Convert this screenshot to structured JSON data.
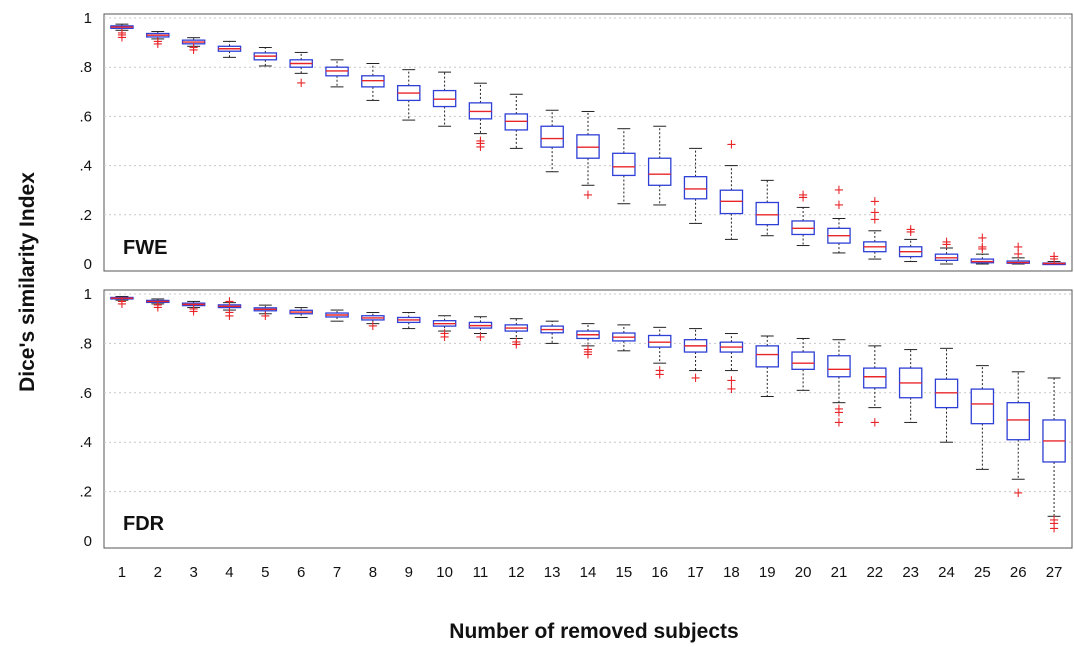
{
  "figure": {
    "ylabel": "Dice's similarity Index",
    "xlabel": "Number of removed subjects"
  },
  "chart_data": [
    {
      "type": "box",
      "panel_label": "FWE",
      "xlabel": "Number of removed subjects",
      "ylabel": "Dice's similarity Index",
      "ylim": [
        0,
        1
      ],
      "y_ticks": [
        0,
        0.2,
        0.4,
        0.6,
        0.8,
        1
      ],
      "y_tick_labels": [
        "0",
        ".2",
        ".4",
        ".6",
        ".8",
        "1"
      ],
      "grid": "horizontal-dotted",
      "categories": [
        "1",
        "2",
        "3",
        "4",
        "5",
        "6",
        "7",
        "8",
        "9",
        "10",
        "11",
        "12",
        "13",
        "14",
        "15",
        "16",
        "17",
        "18",
        "19",
        "20",
        "21",
        "22",
        "23",
        "24",
        "25",
        "26",
        "27"
      ],
      "boxes": [
        {
          "x": "1",
          "whisker_low": 0.95,
          "q1": 0.958,
          "median": 0.963,
          "q3": 0.968,
          "whisker_high": 0.975,
          "outliers": [
            0.94,
            0.93,
            0.92
          ]
        },
        {
          "x": "2",
          "whisker_low": 0.915,
          "q1": 0.923,
          "median": 0.93,
          "q3": 0.937,
          "whisker_high": 0.945,
          "outliers": [
            0.905,
            0.895
          ]
        },
        {
          "x": "3",
          "whisker_low": 0.885,
          "q1": 0.895,
          "median": 0.902,
          "q3": 0.91,
          "whisker_high": 0.92,
          "outliers": [
            0.88,
            0.87
          ]
        },
        {
          "x": "4",
          "whisker_low": 0.84,
          "q1": 0.865,
          "median": 0.875,
          "q3": 0.885,
          "whisker_high": 0.905,
          "outliers": []
        },
        {
          "x": "5",
          "whisker_low": 0.805,
          "q1": 0.83,
          "median": 0.845,
          "q3": 0.858,
          "whisker_high": 0.88,
          "outliers": []
        },
        {
          "x": "6",
          "whisker_low": 0.775,
          "q1": 0.8,
          "median": 0.815,
          "q3": 0.83,
          "whisker_high": 0.86,
          "outliers": [
            0.735
          ]
        },
        {
          "x": "7",
          "whisker_low": 0.72,
          "q1": 0.765,
          "median": 0.785,
          "q3": 0.8,
          "whisker_high": 0.83,
          "outliers": []
        },
        {
          "x": "8",
          "whisker_low": 0.665,
          "q1": 0.72,
          "median": 0.745,
          "q3": 0.765,
          "whisker_high": 0.815,
          "outliers": []
        },
        {
          "x": "9",
          "whisker_low": 0.585,
          "q1": 0.665,
          "median": 0.695,
          "q3": 0.725,
          "whisker_high": 0.79,
          "outliers": []
        },
        {
          "x": "10",
          "whisker_low": 0.56,
          "q1": 0.64,
          "median": 0.67,
          "q3": 0.705,
          "whisker_high": 0.78,
          "outliers": []
        },
        {
          "x": "11",
          "whisker_low": 0.53,
          "q1": 0.59,
          "median": 0.62,
          "q3": 0.655,
          "whisker_high": 0.735,
          "outliers": [
            0.5,
            0.49,
            0.475
          ]
        },
        {
          "x": "12",
          "whisker_low": 0.47,
          "q1": 0.545,
          "median": 0.58,
          "q3": 0.61,
          "whisker_high": 0.69,
          "outliers": []
        },
        {
          "x": "13",
          "whisker_low": 0.375,
          "q1": 0.475,
          "median": 0.51,
          "q3": 0.56,
          "whisker_high": 0.625,
          "outliers": []
        },
        {
          "x": "14",
          "whisker_low": 0.32,
          "q1": 0.43,
          "median": 0.475,
          "q3": 0.525,
          "whisker_high": 0.62,
          "outliers": [
            0.28
          ]
        },
        {
          "x": "15",
          "whisker_low": 0.245,
          "q1": 0.36,
          "median": 0.395,
          "q3": 0.45,
          "whisker_high": 0.55,
          "outliers": []
        },
        {
          "x": "16",
          "whisker_low": 0.24,
          "q1": 0.32,
          "median": 0.365,
          "q3": 0.43,
          "whisker_high": 0.56,
          "outliers": []
        },
        {
          "x": "17",
          "whisker_low": 0.165,
          "q1": 0.265,
          "median": 0.305,
          "q3": 0.355,
          "whisker_high": 0.47,
          "outliers": []
        },
        {
          "x": "18",
          "whisker_low": 0.1,
          "q1": 0.205,
          "median": 0.255,
          "q3": 0.3,
          "whisker_high": 0.4,
          "outliers": [
            0.485
          ]
        },
        {
          "x": "19",
          "whisker_low": 0.115,
          "q1": 0.16,
          "median": 0.2,
          "q3": 0.25,
          "whisker_high": 0.34,
          "outliers": []
        },
        {
          "x": "20",
          "whisker_low": 0.075,
          "q1": 0.12,
          "median": 0.145,
          "q3": 0.175,
          "whisker_high": 0.23,
          "outliers": [
            0.27,
            0.28
          ]
        },
        {
          "x": "21",
          "whisker_low": 0.045,
          "q1": 0.085,
          "median": 0.115,
          "q3": 0.145,
          "whisker_high": 0.185,
          "outliers": [
            0.24,
            0.3
          ]
        },
        {
          "x": "22",
          "whisker_low": 0.02,
          "q1": 0.05,
          "median": 0.07,
          "q3": 0.09,
          "whisker_high": 0.135,
          "outliers": [
            0.18,
            0.21,
            0.255
          ]
        },
        {
          "x": "23",
          "whisker_low": 0.01,
          "q1": 0.03,
          "median": 0.05,
          "q3": 0.07,
          "whisker_high": 0.1,
          "outliers": [
            0.13,
            0.14
          ]
        },
        {
          "x": "24",
          "whisker_low": 0.0,
          "q1": 0.015,
          "median": 0.025,
          "q3": 0.04,
          "whisker_high": 0.065,
          "outliers": [
            0.08,
            0.09
          ]
        },
        {
          "x": "25",
          "whisker_low": 0.0,
          "q1": 0.005,
          "median": 0.01,
          "q3": 0.02,
          "whisker_high": 0.04,
          "outliers": [
            0.06,
            0.07,
            0.105
          ]
        },
        {
          "x": "26",
          "whisker_low": 0.0,
          "q1": 0.003,
          "median": 0.006,
          "q3": 0.012,
          "whisker_high": 0.025,
          "outliers": [
            0.04,
            0.07
          ]
        },
        {
          "x": "27",
          "whisker_low": 0.0,
          "q1": 0.0,
          "median": 0.002,
          "q3": 0.004,
          "whisker_high": 0.01,
          "outliers": [
            0.02,
            0.03
          ]
        }
      ]
    },
    {
      "type": "box",
      "panel_label": "FDR",
      "xlabel": "Number of removed subjects",
      "ylabel": "Dice's similarity Index",
      "ylim": [
        0,
        1
      ],
      "y_ticks": [
        0,
        0.2,
        0.4,
        0.6,
        0.8,
        1
      ],
      "y_tick_labels": [
        "0",
        ".2",
        ".4",
        ".6",
        ".8",
        "1"
      ],
      "grid": "horizontal-dotted",
      "categories": [
        "1",
        "2",
        "3",
        "4",
        "5",
        "6",
        "7",
        "8",
        "9",
        "10",
        "11",
        "12",
        "13",
        "14",
        "15",
        "16",
        "17",
        "18",
        "19",
        "20",
        "21",
        "22",
        "23",
        "24",
        "25",
        "26",
        "27"
      ],
      "boxes": [
        {
          "x": "1",
          "whisker_low": 0.975,
          "q1": 0.98,
          "median": 0.983,
          "q3": 0.986,
          "whisker_high": 0.99,
          "outliers": [
            0.97,
            0.96
          ]
        },
        {
          "x": "2",
          "whisker_low": 0.96,
          "q1": 0.966,
          "median": 0.97,
          "q3": 0.974,
          "whisker_high": 0.98,
          "outliers": [
            0.955,
            0.945
          ]
        },
        {
          "x": "3",
          "whisker_low": 0.945,
          "q1": 0.953,
          "median": 0.958,
          "q3": 0.963,
          "whisker_high": 0.97,
          "outliers": [
            0.94,
            0.93
          ]
        },
        {
          "x": "4",
          "whisker_low": 0.935,
          "q1": 0.945,
          "median": 0.95,
          "q3": 0.956,
          "whisker_high": 0.965,
          "outliers": [
            0.97,
            0.925,
            0.91
          ]
        },
        {
          "x": "5",
          "whisker_low": 0.92,
          "q1": 0.932,
          "median": 0.938,
          "q3": 0.944,
          "whisker_high": 0.955,
          "outliers": [
            0.91
          ]
        },
        {
          "x": "6",
          "whisker_low": 0.905,
          "q1": 0.92,
          "median": 0.927,
          "q3": 0.934,
          "whisker_high": 0.945,
          "outliers": []
        },
        {
          "x": "7",
          "whisker_low": 0.89,
          "q1": 0.907,
          "median": 0.915,
          "q3": 0.923,
          "whisker_high": 0.935,
          "outliers": []
        },
        {
          "x": "8",
          "whisker_low": 0.88,
          "q1": 0.895,
          "median": 0.903,
          "q3": 0.912,
          "whisker_high": 0.925,
          "outliers": [
            0.87
          ]
        },
        {
          "x": "9",
          "whisker_low": 0.86,
          "q1": 0.885,
          "median": 0.895,
          "q3": 0.905,
          "whisker_high": 0.925,
          "outliers": []
        },
        {
          "x": "10",
          "whisker_low": 0.85,
          "q1": 0.87,
          "median": 0.88,
          "q3": 0.892,
          "whisker_high": 0.912,
          "outliers": [
            0.84,
            0.825
          ]
        },
        {
          "x": "11",
          "whisker_low": 0.84,
          "q1": 0.862,
          "median": 0.872,
          "q3": 0.885,
          "whisker_high": 0.908,
          "outliers": [
            0.825
          ]
        },
        {
          "x": "12",
          "whisker_low": 0.82,
          "q1": 0.85,
          "median": 0.862,
          "q3": 0.875,
          "whisker_high": 0.9,
          "outliers": [
            0.805,
            0.795
          ]
        },
        {
          "x": "13",
          "whisker_low": 0.8,
          "q1": 0.843,
          "median": 0.856,
          "q3": 0.87,
          "whisker_high": 0.89,
          "outliers": []
        },
        {
          "x": "14",
          "whisker_low": 0.79,
          "q1": 0.82,
          "median": 0.835,
          "q3": 0.85,
          "whisker_high": 0.88,
          "outliers": [
            0.775,
            0.765,
            0.755
          ]
        },
        {
          "x": "15",
          "whisker_low": 0.77,
          "q1": 0.81,
          "median": 0.825,
          "q3": 0.842,
          "whisker_high": 0.875,
          "outliers": []
        },
        {
          "x": "16",
          "whisker_low": 0.72,
          "q1": 0.785,
          "median": 0.805,
          "q3": 0.832,
          "whisker_high": 0.865,
          "outliers": [
            0.69,
            0.675
          ]
        },
        {
          "x": "17",
          "whisker_low": 0.69,
          "q1": 0.765,
          "median": 0.79,
          "q3": 0.815,
          "whisker_high": 0.86,
          "outliers": [
            0.66
          ]
        },
        {
          "x": "18",
          "whisker_low": 0.69,
          "q1": 0.765,
          "median": 0.785,
          "q3": 0.805,
          "whisker_high": 0.84,
          "outliers": [
            0.65,
            0.615
          ]
        },
        {
          "x": "19",
          "whisker_low": 0.585,
          "q1": 0.705,
          "median": 0.755,
          "q3": 0.79,
          "whisker_high": 0.83,
          "outliers": []
        },
        {
          "x": "20",
          "whisker_low": 0.61,
          "q1": 0.695,
          "median": 0.72,
          "q3": 0.765,
          "whisker_high": 0.82,
          "outliers": []
        },
        {
          "x": "21",
          "whisker_low": 0.56,
          "q1": 0.665,
          "median": 0.695,
          "q3": 0.75,
          "whisker_high": 0.815,
          "outliers": [
            0.535,
            0.52,
            0.48
          ]
        },
        {
          "x": "22",
          "whisker_low": 0.54,
          "q1": 0.62,
          "median": 0.665,
          "q3": 0.7,
          "whisker_high": 0.79,
          "outliers": [
            0.48
          ]
        },
        {
          "x": "23",
          "whisker_low": 0.48,
          "q1": 0.58,
          "median": 0.64,
          "q3": 0.7,
          "whisker_high": 0.775,
          "outliers": []
        },
        {
          "x": "24",
          "whisker_low": 0.4,
          "q1": 0.54,
          "median": 0.6,
          "q3": 0.655,
          "whisker_high": 0.78,
          "outliers": []
        },
        {
          "x": "25",
          "whisker_low": 0.29,
          "q1": 0.475,
          "median": 0.555,
          "q3": 0.615,
          "whisker_high": 0.71,
          "outliers": []
        },
        {
          "x": "26",
          "whisker_low": 0.25,
          "q1": 0.41,
          "median": 0.49,
          "q3": 0.56,
          "whisker_high": 0.685,
          "outliers": [
            0.195
          ]
        },
        {
          "x": "27",
          "whisker_low": 0.1,
          "q1": 0.32,
          "median": 0.405,
          "q3": 0.49,
          "whisker_high": 0.66,
          "outliers": [
            0.085,
            0.07,
            0.05
          ]
        }
      ]
    }
  ],
  "colors": {
    "box_edge": "#2d3fd6",
    "median": "#e8262a",
    "outlier": "#e8262a",
    "whisker": "#222222",
    "frame": "#555555",
    "grid": "#c8c8c8"
  }
}
